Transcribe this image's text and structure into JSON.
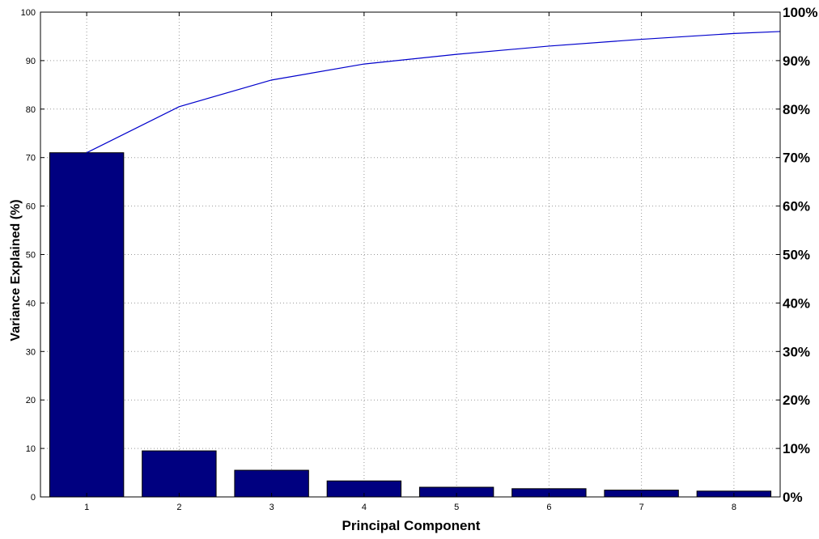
{
  "chart_data": {
    "type": "bar",
    "xlabel": "Principal Component",
    "ylabel": "Variance Explained (%)",
    "categories": [
      "1",
      "2",
      "3",
      "4",
      "5",
      "6",
      "7",
      "8"
    ],
    "values": [
      71,
      9.5,
      5.5,
      3.3,
      2.0,
      1.7,
      1.4,
      1.2
    ],
    "cumulative": [
      71,
      80.5,
      86,
      89.3,
      91.3,
      93,
      94.4,
      95.6
    ],
    "cumulative_end": 96,
    "ylim": [
      0,
      100
    ],
    "y_ticks": [
      "0",
      "10",
      "20",
      "30",
      "40",
      "50",
      "60",
      "70",
      "80",
      "90",
      "100"
    ],
    "y2_ticks": [
      "0%",
      "10%",
      "20%",
      "30%",
      "40%",
      "50%",
      "60%",
      "70%",
      "80%",
      "90%",
      "100%"
    ],
    "grid": true,
    "colors": {
      "bar": "#000080",
      "line": "#0000cc",
      "grid": "#999999"
    }
  }
}
